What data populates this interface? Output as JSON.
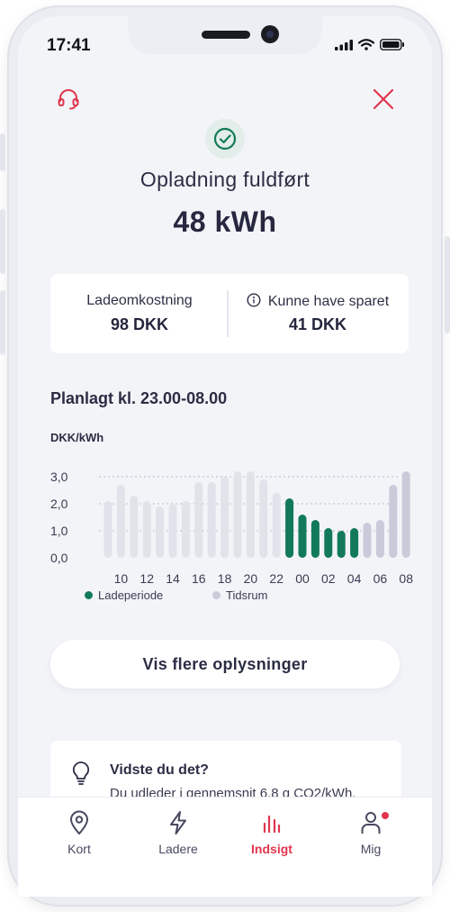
{
  "status_bar": {
    "time": "17:41"
  },
  "header": {
    "support_icon": "headset-icon",
    "close_icon": "close-icon",
    "status_icon": "check-icon",
    "title": "Opladning fuldført",
    "energy": "48 kWh"
  },
  "summary": {
    "cost_label": "Ladeomkostning",
    "cost_value": "98 DKK",
    "savings_label": "Kunne have sparet",
    "savings_value": "41 DKK",
    "info_icon": "info-icon"
  },
  "schedule": {
    "title": "Planlagt kl. 23.00-08.00"
  },
  "chart_data": {
    "type": "bar",
    "ylabel": "DKK/kWh",
    "ylim": [
      0,
      3.0
    ],
    "yticks": [
      "0,0",
      "1,0",
      "2,0",
      "3,0"
    ],
    "xticks": [
      "10",
      "12",
      "14",
      "16",
      "18",
      "20",
      "22",
      "00",
      "02",
      "04",
      "06",
      "08"
    ],
    "hours": [
      9,
      10,
      11,
      12,
      13,
      14,
      15,
      16,
      17,
      18,
      19,
      20,
      21,
      22,
      23,
      0,
      1,
      2,
      3,
      4,
      5,
      6,
      7,
      8
    ],
    "values": [
      2.1,
      2.7,
      2.3,
      2.1,
      1.9,
      2.0,
      2.1,
      2.8,
      2.8,
      3.0,
      3.2,
      3.2,
      2.9,
      2.4,
      2.2,
      1.6,
      1.4,
      1.1,
      1.0,
      1.1,
      1.3,
      1.4,
      2.7,
      3.2
    ],
    "series_kind": [
      "past",
      "past",
      "past",
      "past",
      "past",
      "past",
      "past",
      "past",
      "past",
      "past",
      "past",
      "past",
      "past",
      "past",
      "charge",
      "charge",
      "charge",
      "charge",
      "charge",
      "charge",
      "window",
      "window",
      "window",
      "window"
    ],
    "legend": [
      {
        "name": "Ladeperiode",
        "color": "#127a5a"
      },
      {
        "name": "Tidsrum",
        "color": "#c9cbda"
      }
    ],
    "colors": {
      "past": "#e2e3ea",
      "charge": "#127a5a",
      "window": "#c9cbda"
    },
    "grid": "dotted",
    "legend_position": "bottom-left"
  },
  "actions": {
    "more_info": "Vis flere oplysninger"
  },
  "tip": {
    "icon": "lightbulb-icon",
    "title": "Vidste du det?",
    "text": "Du udleder i gennemsnit 6,8 g CO2/kWh."
  },
  "tabbar": {
    "tabs": [
      {
        "label": "Kort",
        "icon": "map-pin-icon"
      },
      {
        "label": "Ladere",
        "icon": "lightning-icon"
      },
      {
        "label": "Indsigt",
        "icon": "bar-chart-icon",
        "active": true
      },
      {
        "label": "Mig",
        "icon": "user-icon",
        "badge": true
      }
    ]
  }
}
